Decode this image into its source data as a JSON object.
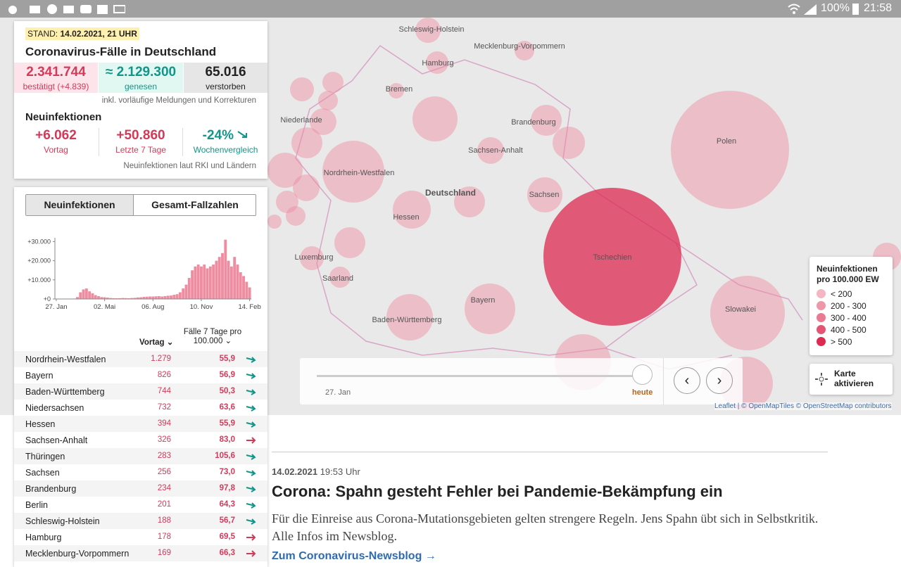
{
  "status_bar": {
    "battery": "100%",
    "time": "21:58"
  },
  "summary": {
    "stand_label": "STAND:",
    "stand_date": "14.02.2021, 21 UHR",
    "title": "Coronavirus-Fälle in Deutschland",
    "confirmed": "2.341.744",
    "confirmed_label": "bestätigt (+4.839)",
    "recovered": "≈ 2.129.300",
    "recovered_label": "genesen",
    "deaths": "65.016",
    "deaths_label": "verstorben",
    "note": "inkl. vorläufige Meldungen und Korrekturen",
    "new_title": "Neuinfektionen",
    "prev_day": "+6.062",
    "prev_day_label": "Vortag",
    "last7": "+50.860",
    "last7_label": "Letzte 7 Tage",
    "week": "-24%",
    "week_label": "Wochenvergleich",
    "footnote": "Neuinfektionen laut RKI und Ländern"
  },
  "tabs": [
    "Neuinfektionen",
    "Gesamt-Fallzahlen"
  ],
  "chart_data": {
    "type": "bar",
    "color": "#f08ca0",
    "categories": [
      "27. Jan",
      null,
      null,
      null,
      null,
      null,
      null,
      null,
      null,
      null,
      null,
      null,
      null,
      null,
      null,
      null,
      "02. Mai",
      null,
      null,
      null,
      null,
      null,
      null,
      null,
      null,
      null,
      null,
      null,
      null,
      null,
      null,
      null,
      "06. Aug",
      null,
      null,
      null,
      null,
      null,
      null,
      null,
      null,
      null,
      null,
      null,
      null,
      null,
      null,
      null,
      "10. Nov",
      null,
      null,
      null,
      null,
      null,
      null,
      null,
      null,
      null,
      null,
      null,
      null,
      null,
      null,
      null,
      "14. Feb"
    ],
    "values": [
      0,
      0,
      0,
      0,
      0,
      50,
      200,
      1000,
      3500,
      5000,
      5500,
      4000,
      3000,
      2000,
      1500,
      1000,
      900,
      700,
      500,
      400,
      350,
      400,
      500,
      450,
      400,
      500,
      600,
      800,
      900,
      1100,
      1200,
      1300,
      1300,
      1400,
      1500,
      1300,
      1500,
      1700,
      1800,
      2200,
      2500,
      3500,
      5500,
      7500,
      11000,
      15000,
      17000,
      18000,
      17000,
      18000,
      16000,
      17000,
      18000,
      20000,
      22000,
      24000,
      31000,
      20000,
      17000,
      22000,
      18000,
      14000,
      12000,
      9000,
      6062
    ],
    "ylim": [
      0,
      32000
    ],
    "yticks": [
      {
        "value": 0,
        "label": "+0"
      },
      {
        "value": 10000,
        "label": "+10.000"
      },
      {
        "value": 20000,
        "label": "+20.000"
      },
      {
        "value": 30000,
        "label": "+30.000"
      }
    ]
  },
  "table": {
    "col_vortag": "Vortag",
    "col_incidence": "Fälle 7 Tage pro 100.000",
    "rows": [
      {
        "name": "Nordrhein-Westfalen",
        "vortag": "1.279",
        "incidence": "55,9",
        "trend": "falling"
      },
      {
        "name": "Bayern",
        "vortag": "826",
        "incidence": "56,9",
        "trend": "falling"
      },
      {
        "name": "Baden-Württemberg",
        "vortag": "744",
        "incidence": "50,3",
        "trend": "falling"
      },
      {
        "name": "Niedersachsen",
        "vortag": "732",
        "incidence": "63,6",
        "trend": "falling"
      },
      {
        "name": "Hessen",
        "vortag": "394",
        "incidence": "55,9",
        "trend": "falling"
      },
      {
        "name": "Sachsen-Anhalt",
        "vortag": "326",
        "incidence": "83,0",
        "trend": "rising"
      },
      {
        "name": "Thüringen",
        "vortag": "283",
        "incidence": "105,6",
        "trend": "falling"
      },
      {
        "name": "Sachsen",
        "vortag": "256",
        "incidence": "73,0",
        "trend": "falling"
      },
      {
        "name": "Brandenburg",
        "vortag": "234",
        "incidence": "97,8",
        "trend": "falling"
      },
      {
        "name": "Berlin",
        "vortag": "201",
        "incidence": "64,3",
        "trend": "falling"
      },
      {
        "name": "Schleswig-Holstein",
        "vortag": "188",
        "incidence": "56,7",
        "trend": "falling"
      },
      {
        "name": "Hamburg",
        "vortag": "178",
        "incidence": "69,5",
        "trend": "rising"
      },
      {
        "name": "Mecklenburg-Vorpommern",
        "vortag": "169",
        "incidence": "66,3",
        "trend": "rising"
      }
    ]
  },
  "map": {
    "labels": [
      "Schleswig-Holstein",
      "Mecklenburg-Vorpommern",
      "Hamburg",
      "Bremen",
      "Niederlande",
      "Brandenburg",
      "Sachsen-Anhalt",
      "Polen",
      "Nordrhein-Westfalen",
      "Deutschland",
      "Sachsen",
      "Hessen",
      "Tschechien",
      "Luxemburg",
      "Saarland",
      "Bayern",
      "Baden-Württemberg",
      "Slowakei"
    ],
    "legend_title": "Neuinfektionen pro 100.000 EW",
    "legend": [
      {
        "label": "< 200",
        "color": "#f4b6c3"
      },
      {
        "label": "200 - 300",
        "color": "#ef97aa"
      },
      {
        "label": "300 - 400",
        "color": "#e97a91"
      },
      {
        "label": "400 - 500",
        "color": "#e35573"
      },
      {
        "label": "> 500",
        "color": "#dc2a50"
      }
    ],
    "slider_start": "27. Jan",
    "slider_end": "heute",
    "activate": "Karte aktivieren",
    "attribution": "Leaflet | © OpenMapTiles © OpenStreetMap contributors"
  },
  "article": {
    "date": "14.02.2021",
    "time": "19:53 Uhr",
    "headline": "Corona: Spahn gesteht Fehler bei Pandemie-Bekämpfung ein",
    "teaser": "Für die Einreise aus Corona-Mutationsgebieten gelten strengere Regeln. Jens Spahn übt sich in Selbstkritik. Alle Infos im Newsblog.",
    "link": "Zum Coronavirus-Newsblog →"
  }
}
